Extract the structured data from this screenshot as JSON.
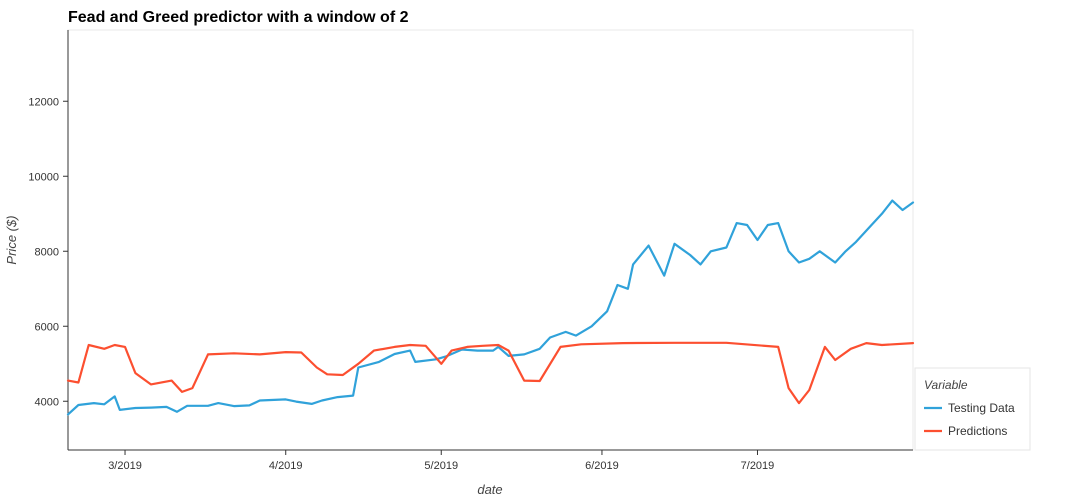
{
  "chart_data": {
    "type": "line",
    "title": "Fead and Greed predictor with a window of 2",
    "xlabel": "date",
    "ylabel": "Price ($)",
    "x_ticks": [
      "3/2019",
      "4/2019",
      "5/2019",
      "6/2019",
      "7/2019"
    ],
    "y_ticks": [
      4000,
      6000,
      8000,
      10000,
      12000
    ],
    "xlim": [
      "2019-02-18",
      "2019-07-31"
    ],
    "ylim": [
      2700,
      13900
    ],
    "grid": false,
    "legend": {
      "title": "Variable",
      "placement": "bottom-right"
    },
    "series": [
      {
        "name": "Testing Data",
        "color": "#30a2da",
        "points": [
          [
            "2019-02-18",
            3650
          ],
          [
            "2019-02-20",
            3900
          ],
          [
            "2019-02-23",
            3950
          ],
          [
            "2019-02-25",
            3920
          ],
          [
            "2019-02-27",
            4130
          ],
          [
            "2019-02-28",
            3770
          ],
          [
            "2019-03-03",
            3820
          ],
          [
            "2019-03-06",
            3830
          ],
          [
            "2019-03-09",
            3850
          ],
          [
            "2019-03-11",
            3720
          ],
          [
            "2019-03-13",
            3880
          ],
          [
            "2019-03-17",
            3880
          ],
          [
            "2019-03-19",
            3950
          ],
          [
            "2019-03-22",
            3870
          ],
          [
            "2019-03-25",
            3890
          ],
          [
            "2019-03-27",
            4020
          ],
          [
            "2019-04-01",
            4050
          ],
          [
            "2019-04-03",
            3990
          ],
          [
            "2019-04-06",
            3930
          ],
          [
            "2019-04-08",
            4020
          ],
          [
            "2019-04-11",
            4110
          ],
          [
            "2019-04-14",
            4150
          ],
          [
            "2019-04-15",
            4900
          ],
          [
            "2019-04-19",
            5050
          ],
          [
            "2019-04-22",
            5260
          ],
          [
            "2019-04-25",
            5350
          ],
          [
            "2019-04-26",
            5050
          ],
          [
            "2019-04-30",
            5120
          ],
          [
            "2019-05-02",
            5200
          ],
          [
            "2019-05-05",
            5380
          ],
          [
            "2019-05-08",
            5350
          ],
          [
            "2019-05-11",
            5350
          ],
          [
            "2019-05-12",
            5450
          ],
          [
            "2019-05-14",
            5210
          ],
          [
            "2019-05-17",
            5250
          ],
          [
            "2019-05-20",
            5400
          ],
          [
            "2019-05-22",
            5700
          ],
          [
            "2019-05-25",
            5850
          ],
          [
            "2019-05-27",
            5750
          ],
          [
            "2019-05-30",
            6000
          ],
          [
            "2019-06-02",
            6400
          ],
          [
            "2019-06-04",
            7100
          ],
          [
            "2019-06-06",
            7000
          ],
          [
            "2019-06-07",
            7650
          ],
          [
            "2019-06-10",
            8150
          ],
          [
            "2019-06-13",
            7350
          ],
          [
            "2019-06-15",
            8200
          ],
          [
            "2019-06-18",
            7900
          ],
          [
            "2019-06-20",
            7650
          ],
          [
            "2019-06-22",
            8000
          ],
          [
            "2019-06-25",
            8100
          ],
          [
            "2019-06-27",
            8750
          ],
          [
            "2019-06-29",
            8700
          ],
          [
            "2019-07-01",
            8300
          ],
          [
            "2019-07-03",
            8700
          ],
          [
            "2019-07-05",
            8750
          ],
          [
            "2019-07-07",
            8000
          ],
          [
            "2019-07-09",
            7700
          ],
          [
            "2019-07-11",
            7800
          ],
          [
            "2019-07-13",
            8000
          ],
          [
            "2019-07-16",
            7700
          ],
          [
            "2019-07-18",
            8000
          ],
          [
            "2019-07-20",
            8250
          ],
          [
            "2019-07-23",
            8700
          ],
          [
            "2019-07-25",
            9000
          ],
          [
            "2019-07-27",
            9350
          ],
          [
            "2019-07-29",
            9100
          ],
          [
            "2019-07-31",
            9300
          ]
        ]
      },
      {
        "name": "Predictions",
        "color": "#fc4f30",
        "points": [
          [
            "2019-02-18",
            4550
          ],
          [
            "2019-02-20",
            4500
          ],
          [
            "2019-02-22",
            5500
          ],
          [
            "2019-02-25",
            5400
          ],
          [
            "2019-02-27",
            5500
          ],
          [
            "2019-03-01",
            5450
          ],
          [
            "2019-03-03",
            4750
          ],
          [
            "2019-03-06",
            4450
          ],
          [
            "2019-03-10",
            4550
          ],
          [
            "2019-03-12",
            4250
          ],
          [
            "2019-03-14",
            4350
          ],
          [
            "2019-03-17",
            5250
          ],
          [
            "2019-03-22",
            5280
          ],
          [
            "2019-03-27",
            5250
          ],
          [
            "2019-04-01",
            5310
          ],
          [
            "2019-04-04",
            5300
          ],
          [
            "2019-04-07",
            4900
          ],
          [
            "2019-04-09",
            4720
          ],
          [
            "2019-04-12",
            4700
          ],
          [
            "2019-04-15",
            5000
          ],
          [
            "2019-04-18",
            5350
          ],
          [
            "2019-04-22",
            5450
          ],
          [
            "2019-04-25",
            5500
          ],
          [
            "2019-04-28",
            5480
          ],
          [
            "2019-05-01",
            5000
          ],
          [
            "2019-05-03",
            5350
          ],
          [
            "2019-05-06",
            5450
          ],
          [
            "2019-05-09",
            5480
          ],
          [
            "2019-05-12",
            5500
          ],
          [
            "2019-05-14",
            5350
          ],
          [
            "2019-05-17",
            4550
          ],
          [
            "2019-05-20",
            4540
          ],
          [
            "2019-05-24",
            5450
          ],
          [
            "2019-05-28",
            5520
          ],
          [
            "2019-06-05",
            5550
          ],
          [
            "2019-06-15",
            5560
          ],
          [
            "2019-06-25",
            5560
          ],
          [
            "2019-07-05",
            5450
          ],
          [
            "2019-07-07",
            4350
          ],
          [
            "2019-07-09",
            3950
          ],
          [
            "2019-07-11",
            4300
          ],
          [
            "2019-07-14",
            5450
          ],
          [
            "2019-07-16",
            5100
          ],
          [
            "2019-07-19",
            5400
          ],
          [
            "2019-07-22",
            5550
          ],
          [
            "2019-07-25",
            5500
          ],
          [
            "2019-07-31",
            5550
          ]
        ]
      }
    ]
  }
}
